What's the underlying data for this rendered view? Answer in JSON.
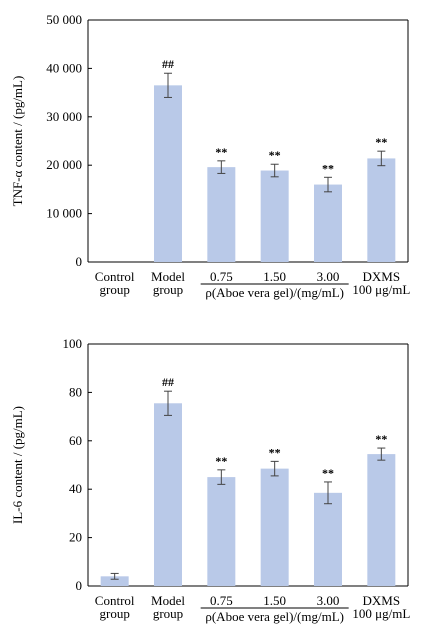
{
  "chart_data": [
    {
      "type": "bar",
      "ylabel": "TNF-α content / (pg/mL)",
      "ylim": [
        0,
        50000
      ],
      "yticks": [
        "0",
        "10 000",
        "20 000",
        "30 000",
        "40 000",
        "50 000"
      ],
      "ytick_values": [
        0,
        10000,
        20000,
        30000,
        40000,
        50000
      ],
      "categories": [
        [
          "Control",
          "group"
        ],
        [
          "Model",
          "group"
        ],
        [
          "0.75"
        ],
        [
          "1.50"
        ],
        [
          "3.00"
        ],
        [
          "DXMS",
          "100 μg/mL"
        ]
      ],
      "group_label": "ρ(Aboe vera gel)/(mg/mL)",
      "values": [
        0,
        36500,
        19600,
        18900,
        16000,
        21400
      ],
      "errors": [
        0,
        2500,
        1300,
        1300,
        1500,
        1500
      ],
      "annotations": [
        "",
        "##",
        "**",
        "**",
        "**",
        "**"
      ],
      "bar_color": "#b9c9e8",
      "grid": false
    },
    {
      "type": "bar",
      "ylabel": "IL-6 content / (pg/mL)",
      "ylim": [
        0,
        100
      ],
      "yticks": [
        "0",
        "20",
        "40",
        "60",
        "80",
        "100"
      ],
      "ytick_values": [
        0,
        20,
        40,
        60,
        80,
        100
      ],
      "categories": [
        [
          "Control",
          "group"
        ],
        [
          "Model",
          "group"
        ],
        [
          "0.75"
        ],
        [
          "1.50"
        ],
        [
          "3.00"
        ],
        [
          "DXMS",
          "100 μg/mL"
        ]
      ],
      "group_label": "ρ(Aboe vera gel)/(mg/mL)",
      "values": [
        4,
        75.5,
        45,
        48.5,
        38.5,
        54.5
      ],
      "errors": [
        1.2,
        5,
        3,
        3,
        4.5,
        2.5
      ],
      "annotations": [
        "",
        "##",
        "**",
        "**",
        "**",
        "**"
      ],
      "bar_color": "#b9c9e8",
      "grid": false
    }
  ]
}
